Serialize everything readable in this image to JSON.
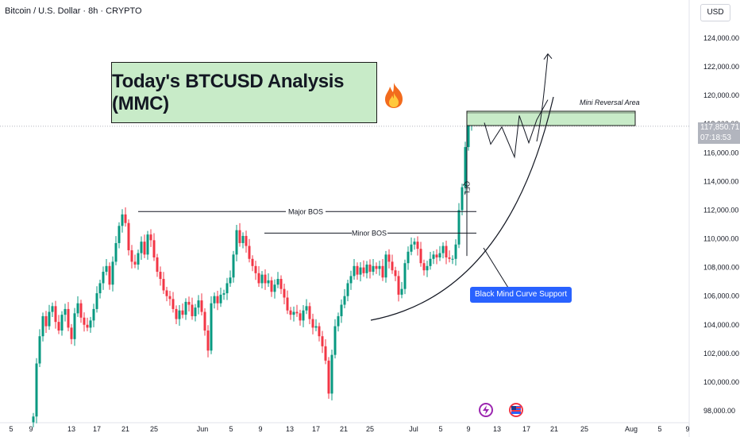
{
  "header": {
    "symbol_line": "Bitcoin / U.S. Dollar · 8h · CRYPTO"
  },
  "currency": "USD",
  "title": "Today's BTCUSD Analysis (MMC)",
  "price_tag": {
    "price": "117,850.71",
    "countdown": "07:18:53"
  },
  "labels": {
    "major_bos": "Major BOS",
    "minor_bos": "Minor BOS",
    "qfl": "QFL",
    "mini_reversal": "Mini Reversal Area",
    "support": "Black Mind Curve Support"
  },
  "colors": {
    "up": "#089981",
    "down": "#f23645",
    "zone": "#c8ebc8",
    "support": "#2962ff"
  },
  "icons": [
    "fire-icon",
    "event-icon",
    "flag-icon"
  ],
  "chart_data": {
    "type": "candlestick",
    "y_axis": {
      "range": [
        97000,
        125000
      ],
      "ticks": [
        "98,000.00",
        "100,000.00",
        "102,000.00",
        "104,000.00",
        "106,000.00",
        "108,000.00",
        "110,000.00",
        "112,000.00",
        "114,000.00",
        "116,000.00",
        "118,000.00",
        "120,000.00",
        "122,000.00",
        "124,000.00"
      ]
    },
    "x_axis": {
      "ticks": [
        "5",
        "9",
        "13",
        "17",
        "21",
        "25",
        "Jun",
        "5",
        "9",
        "13",
        "17",
        "21",
        "25",
        "Jul",
        "5",
        "9",
        "13",
        "17",
        "21",
        "25",
        "Aug",
        "5",
        "9"
      ]
    },
    "closes": [
      97600,
      101300,
      103200,
      104600,
      103900,
      104900,
      105300,
      104200,
      103600,
      104700,
      105100,
      103800,
      103000,
      104800,
      105500,
      104500,
      104000,
      103800,
      104300,
      105100,
      106200,
      106900,
      107700,
      108100,
      106800,
      108400,
      109700,
      110900,
      111700,
      111100,
      109200,
      108400,
      108200,
      109000,
      109800,
      108900,
      110300,
      109900,
      108700,
      107700,
      107200,
      106400,
      106000,
      105800,
      105100,
      104400,
      105000,
      104700,
      105600,
      105400,
      104600,
      105200,
      105700,
      104900,
      103600,
      102200,
      105500,
      106000,
      105500,
      106100,
      106200,
      106900,
      107300,
      108900,
      110600,
      109700,
      110200,
      109500,
      108600,
      108100,
      107600,
      106900,
      107500,
      106900,
      107100,
      106300,
      106800,
      107200,
      106500,
      105900,
      105000,
      104700,
      104900,
      104800,
      104300,
      105000,
      105300,
      104400,
      103800,
      103900,
      103200,
      102500,
      101500,
      99200,
      101900,
      103900,
      104600,
      105400,
      106000,
      106900,
      107400,
      108100,
      107500,
      108000,
      107600,
      108200,
      107700,
      108100,
      107900,
      108100,
      107300,
      108900,
      108400,
      107800,
      107400,
      106100,
      106500,
      108300,
      109100,
      109600,
      109800,
      109300,
      108300,
      107800,
      108100,
      108600,
      108900,
      108700,
      109000,
      109500,
      108700,
      108600,
      108600,
      109600,
      112000,
      113600,
      116400,
      117900,
      118100
    ],
    "major_bos": 111900,
    "minor_bos": 110400,
    "mini_reversal_area": [
      117900,
      118900
    ],
    "current_price": 117850.71,
    "projection": [
      118100,
      116600,
      117800,
      115700,
      118600,
      116700,
      118300,
      119700
    ],
    "breakout_target": 122900
  }
}
